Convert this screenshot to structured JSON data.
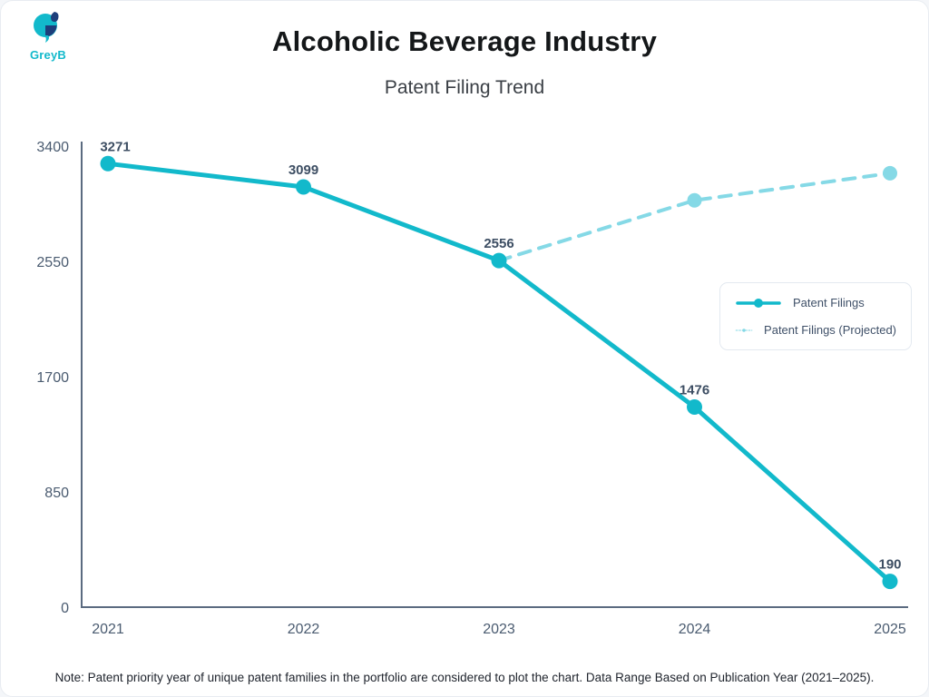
{
  "brand": {
    "name": "GreyB"
  },
  "header": {
    "title": "Alcoholic Beverage Industry",
    "subtitle": "Patent Filing Trend"
  },
  "chart_data": {
    "type": "line",
    "title": "Patent Filing Trend",
    "categories": [
      "2021",
      "2022",
      "2023",
      "2024",
      "2025"
    ],
    "series": [
      {
        "name": "Patent Filings",
        "values": [
          3271,
          3099,
          2556,
          1476,
          190
        ],
        "line_style": "solid",
        "color": "#12b9cb",
        "point_labels": true
      },
      {
        "name": "Patent Filings (Projected)",
        "values": [
          null,
          null,
          2556,
          3000,
          3200
        ],
        "line_style": "dashed",
        "color": "#85d9e6",
        "point_labels": false
      }
    ],
    "xlabel": "",
    "ylabel": "",
    "ylim": [
      0,
      3400
    ],
    "yticks": [
      0,
      850,
      1700,
      2550,
      3400
    ],
    "grid": false,
    "legend_position": "right-middle"
  },
  "footer": {
    "note": "Note: Patent priority year of unique patent families in the portfolio are considered to plot the chart. Data Range Based on Publication Year (2021–2025)."
  },
  "colors": {
    "accent_teal": "#12b9cb",
    "projected_teal": "#85d9e6",
    "logo_navy": "#1d3e7b",
    "axis": "#5b6b80",
    "tick_label": "#4a5b70",
    "data_label": "#3d4e63"
  }
}
